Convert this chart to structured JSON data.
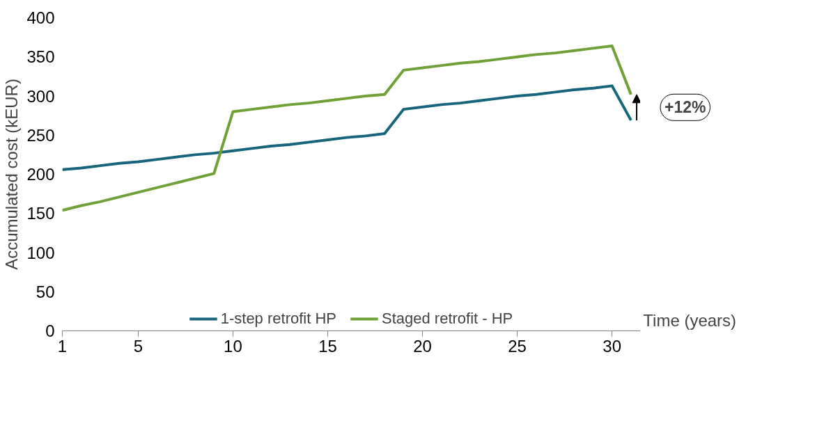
{
  "chart_data": {
    "type": "line",
    "xlabel": "Time (years)",
    "ylabel": "Accumulated cost (kEUR)",
    "x": [
      1,
      2,
      3,
      4,
      5,
      6,
      7,
      8,
      9,
      10,
      11,
      12,
      13,
      14,
      15,
      16,
      17,
      18,
      19,
      20,
      21,
      22,
      23,
      24,
      25,
      26,
      27,
      28,
      29,
      30,
      31
    ],
    "series": [
      {
        "name": "1-step retrofit HP",
        "color": "#17657a",
        "values": [
          206,
          208,
          211,
          214,
          216,
          219,
          222,
          225,
          227,
          230,
          233,
          236,
          238,
          241,
          244,
          247,
          249,
          252,
          283,
          286,
          289,
          291,
          294,
          297,
          300,
          302,
          305,
          308,
          310,
          313,
          269
        ]
      },
      {
        "name": "Staged retrofit - HP",
        "color": "#70a138",
        "values": [
          154,
          160,
          165,
          171,
          177,
          183,
          189,
          195,
          201,
          280,
          283,
          286,
          289,
          291,
          294,
          297,
          300,
          302,
          333,
          336,
          339,
          342,
          344,
          347,
          350,
          353,
          355,
          358,
          361,
          364,
          302
        ]
      }
    ],
    "xlim": [
      1,
      31.5
    ],
    "xticks": [
      1,
      5,
      10,
      15,
      20,
      25,
      30
    ],
    "ylim": [
      0,
      400
    ],
    "yticks": [
      0,
      50,
      100,
      150,
      200,
      250,
      300,
      350,
      400
    ],
    "annotations": [
      "+12%"
    ],
    "grid": false,
    "legend": "bottom",
    "marker": "none",
    "line_style": "solid"
  }
}
